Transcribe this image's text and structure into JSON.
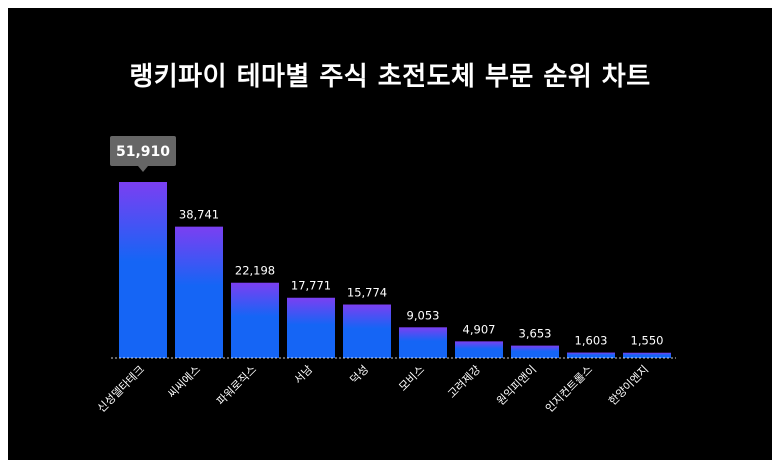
{
  "title": "랭키파이 테마별 주식 초전도체 부문 순위 차트",
  "colors": {
    "background": "#000000",
    "bar_top": "#7b3ff2",
    "bar_bottom": "#1565f5",
    "callout": "#666666",
    "text": "#ffffff"
  },
  "chart_data": {
    "type": "bar",
    "title": "랭키파이 테마별 주식 초전도체 부문 순위 차트",
    "xlabel": "",
    "ylabel": "",
    "categories": [
      "신성델타테크",
      "씨씨에스",
      "파워로직스",
      "서남",
      "덕성",
      "모비스",
      "고려제강",
      "원익피앤이",
      "인지컨트롤스",
      "한양이엔지"
    ],
    "values": [
      51910,
      38741,
      22198,
      17771,
      15774,
      9053,
      4907,
      3653,
      1603,
      1550
    ],
    "value_labels": [
      "51,910",
      "38,741",
      "22,198",
      "17,771",
      "15,774",
      "9,053",
      "4,907",
      "3,653",
      "1,603",
      "1,550"
    ],
    "highlight_index": 0,
    "ylim": [
      0,
      51910
    ],
    "grid": false,
    "legend": "none"
  }
}
